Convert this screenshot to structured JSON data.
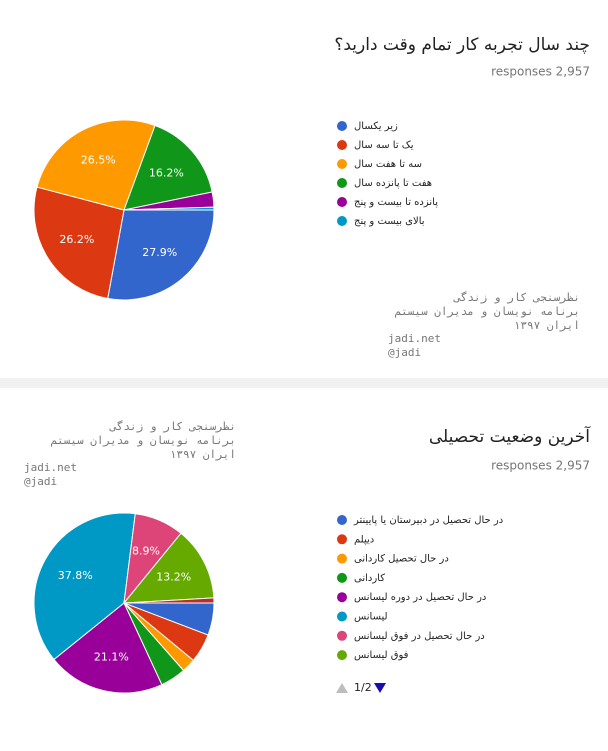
{
  "chart_data": [
    {
      "type": "pie",
      "title": "چند سال تجربه کار تمام وقت دارید؟",
      "subtitle": "responses 2,957",
      "categories": [
        "زیر یکسال",
        "یک تا سه سال",
        "سه تا هفت سال",
        "هفت تا پانزده سال",
        "پانزده تا بیست و پنج",
        "بالای بیست و پنج"
      ],
      "values": [
        27.9,
        26.2,
        26.5,
        16.2,
        2.7,
        0.5
      ],
      "value_labels": [
        "27.9%",
        "26.2%",
        "26.5%",
        "16.2%",
        null,
        null
      ],
      "colors": [
        "#3366cc",
        "#dc3912",
        "#ff9900",
        "#109618",
        "#990099",
        "#0099c6"
      ],
      "annotations": [
        "نظرسنجی کار و زندگی",
        "برنامه نویسان و مدیران سیستم",
        "ایران ۱۳۹۷",
        "jadi.net",
        "@jadi"
      ]
    },
    {
      "type": "pie",
      "title": "آخرین وضعیت تحصیلی",
      "subtitle": "responses 2,957",
      "categories": [
        "در حال تحصیل در دبیرستان یا پایینتر",
        "دیپلم",
        "در حال تحصیل کاردانی",
        "کاردانی",
        "در حال تحصیل در دوره لیسانس",
        "لیسانس",
        "در حال تحصیل در فوق لیسانس",
        "فوق لیسانس",
        null
      ],
      "values": [
        5.8,
        5.2,
        2.5,
        4.6,
        21.1,
        37.8,
        8.9,
        13.2,
        0.9
      ],
      "value_labels": [
        null,
        null,
        null,
        null,
        "21.1%",
        "37.8%",
        "8.9%",
        "13.2%",
        null
      ],
      "colors": [
        "#3366cc",
        "#dc3912",
        "#ff9900",
        "#109618",
        "#990099",
        "#0099c6",
        "#dd4477",
        "#66aa00",
        "#b82e2e"
      ],
      "legend_page": "1/2",
      "annotations": [
        "نظرسنجی کار و زندگی",
        "برنامه نویسان و مدیران سیستم",
        "ایران ۱۳۹۷",
        "jadi.net",
        "@jadi"
      ]
    }
  ]
}
